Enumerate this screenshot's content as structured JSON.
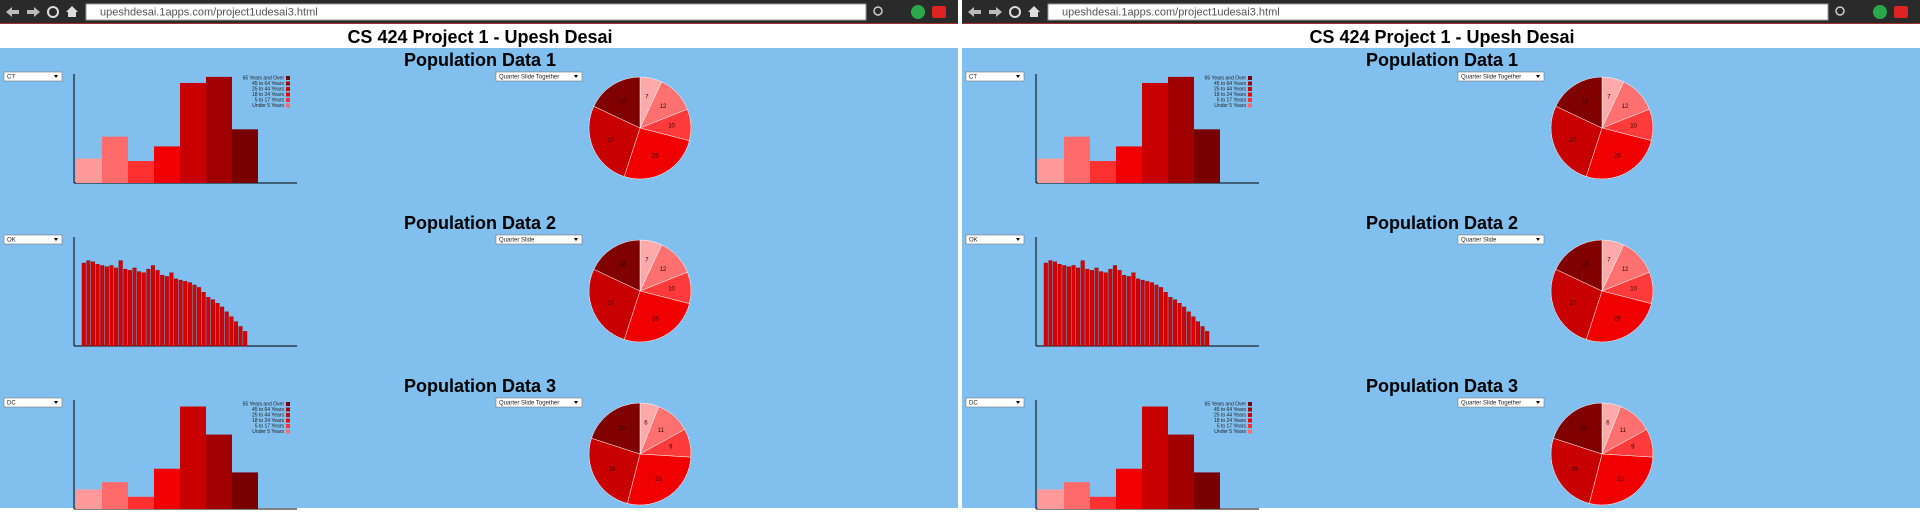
{
  "windows": [
    {
      "url": "upeshdesai.1apps.com/project1udesai3.html",
      "title": "CS 424 Project 1 - Upesh Desai",
      "bar_colors": [
        "#ff9a9a",
        "#ff6b6b",
        "#ff3030",
        "#f00000",
        "#c80000",
        "#a00000",
        "#7a0000"
      ],
      "dense_bar_color": "#d80000",
      "pie_colors": [
        "#ffaaaa",
        "#ff7070",
        "#ff3a3a",
        "#f00000",
        "#c80000",
        "#800000"
      ],
      "panels": [
        {
          "heading": "Population Data 1",
          "state": "CT",
          "view": "Quarter Slide Together",
          "bars": [
            20,
            38,
            18,
            30,
            82,
            87,
            44
          ],
          "legend": [
            "65 Years and Over",
            "45 to 64 Years",
            "25 to 44 Years",
            "18 to 24 Years",
            "5 to 17 Years",
            "Under 5 Years"
          ],
          "pie": [
            7,
            12,
            10,
            26,
            27,
            18
          ]
        },
        {
          "heading": "Population Data 2",
          "state": "OK",
          "view": "Quarter Slide",
          "bars": [
            68,
            70,
            69,
            67,
            66,
            65,
            66,
            64,
            70,
            63,
            62,
            64,
            61,
            60,
            63,
            66,
            62,
            58,
            57,
            60,
            55,
            54,
            53,
            52,
            50,
            48,
            44,
            40,
            38,
            35,
            32,
            28,
            24,
            20,
            16,
            12
          ],
          "pie": [
            7,
            12,
            10,
            26,
            27,
            18
          ]
        },
        {
          "heading": "Population Data 3",
          "state": "DC",
          "view": "Quarter Slide Together",
          "bars": [
            16,
            22,
            10,
            33,
            84,
            61,
            30
          ],
          "legend": [
            "65 Years and Over",
            "45 to 64 Years",
            "25 to 44 Years",
            "18 to 24 Years",
            "5 to 17 Years",
            "Under 5 Years"
          ],
          "pie": [
            6,
            11,
            9,
            28,
            26,
            20
          ]
        }
      ]
    },
    {
      "url": "upeshdesai.1apps.com/project1udesai3.html",
      "title": "CS 424 Project 1 - Upesh Desai",
      "bar_colors": [
        "#ff9a9a",
        "#ff6b6b",
        "#ff3030",
        "#f00000",
        "#c80000",
        "#a00000",
        "#7a0000"
      ],
      "dense_bar_color": "#d80000",
      "pie_colors": [
        "#ffaaaa",
        "#ff7070",
        "#ff3a3a",
        "#f00000",
        "#c80000",
        "#800000"
      ],
      "panels": [
        {
          "heading": "Population Data 1",
          "state": "CT",
          "view": "Quarter Slide Together",
          "bars": [
            20,
            38,
            18,
            30,
            82,
            87,
            44
          ],
          "legend": [
            "65 Years and Over",
            "45 to 64 Years",
            "25 to 44 Years",
            "18 to 24 Years",
            "5 to 17 Years",
            "Under 5 Years"
          ],
          "pie": [
            7,
            12,
            10,
            26,
            27,
            18
          ]
        },
        {
          "heading": "Population Data 2",
          "state": "OK",
          "view": "Quarter Slide",
          "bars": [
            68,
            70,
            69,
            67,
            66,
            65,
            66,
            64,
            70,
            63,
            62,
            64,
            61,
            60,
            63,
            66,
            62,
            58,
            57,
            60,
            55,
            54,
            53,
            52,
            50,
            48,
            44,
            40,
            38,
            35,
            32,
            28,
            24,
            20,
            16,
            12
          ],
          "pie": [
            7,
            12,
            10,
            26,
            27,
            18
          ]
        },
        {
          "heading": "Population Data 3",
          "state": "DC",
          "view": "Quarter Slide Together",
          "bars": [
            16,
            22,
            10,
            33,
            84,
            61,
            30
          ],
          "legend": [
            "65 Years and Over",
            "45 to 64 Years",
            "25 to 44 Years",
            "18 to 24 Years",
            "5 to 17 Years",
            "Under 5 Years"
          ],
          "pie": [
            6,
            11,
            9,
            28,
            26,
            20
          ]
        }
      ]
    }
  ]
}
